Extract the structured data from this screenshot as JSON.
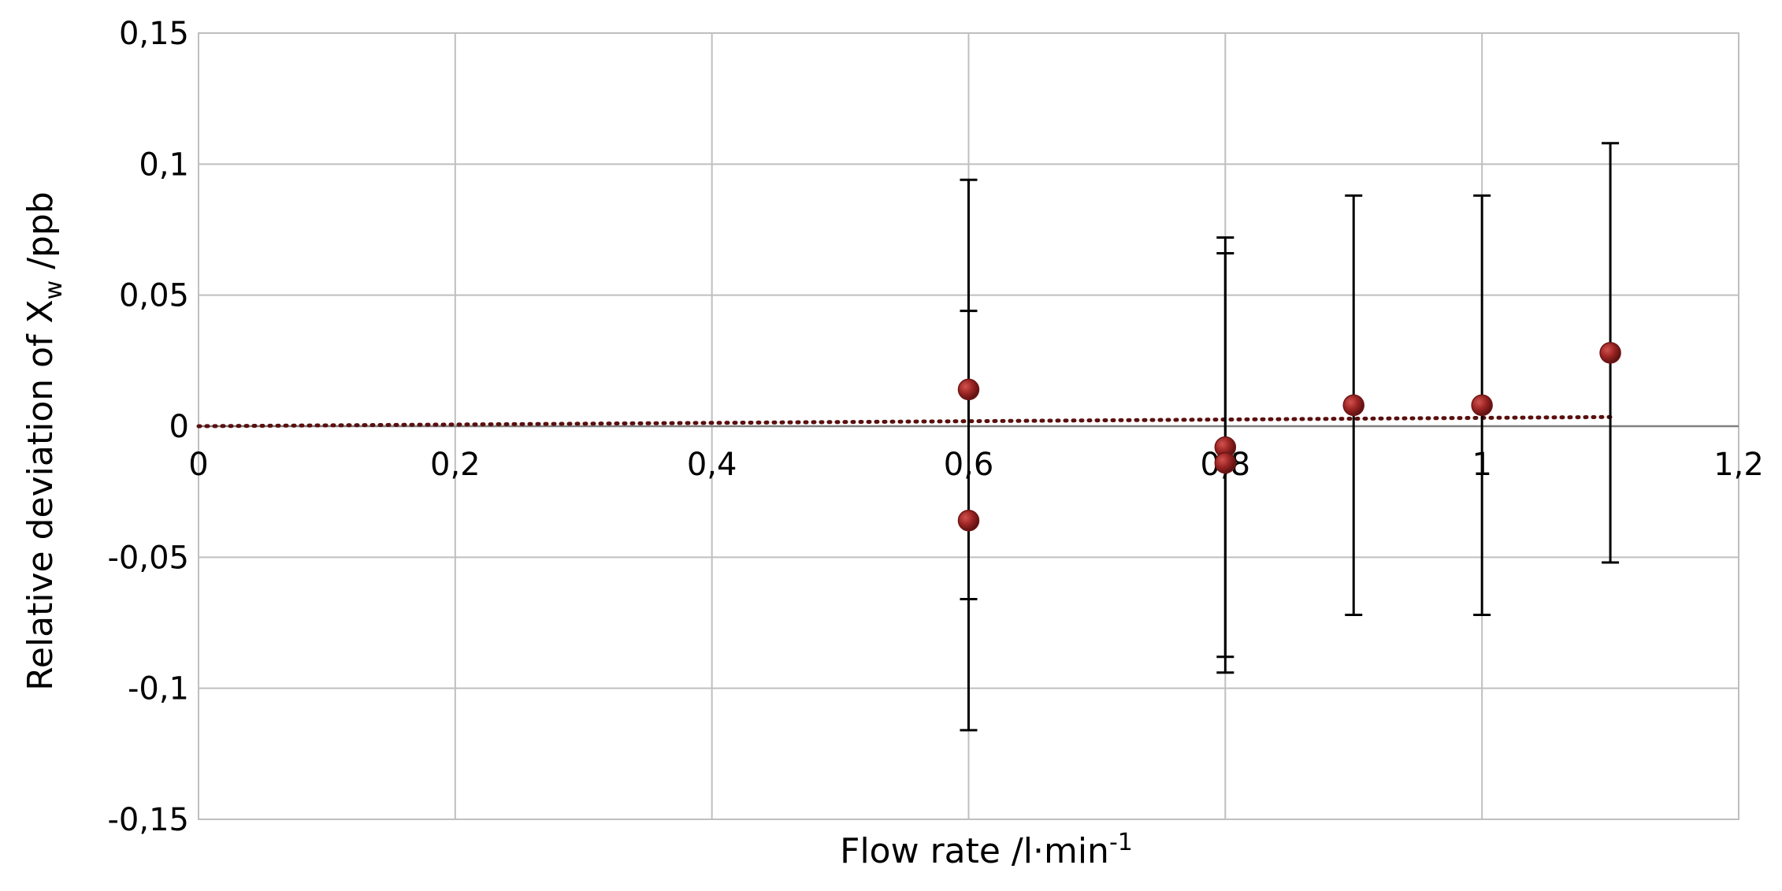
{
  "chart_data": {
    "type": "scatter",
    "xlabel": {
      "main": "Flow rate /l·min",
      "sup": "-1"
    },
    "ylabel": {
      "pre": "Relative deviation of  X",
      "sub": "w",
      "post": " /ppb"
    },
    "xlim": [
      0,
      1.2
    ],
    "ylim": [
      -0.15,
      0.15
    ],
    "x_ticks": [
      0,
      0.2,
      0.4,
      0.6,
      0.8,
      1.0,
      1.2
    ],
    "x_tick_labels": [
      "0",
      "0,2",
      "0,4",
      "0,6",
      "0,8",
      "1",
      "1,2"
    ],
    "y_ticks": [
      -0.15,
      -0.1,
      -0.05,
      0,
      0.05,
      0.1,
      0.15
    ],
    "y_tick_labels": [
      "-0,15",
      "-0,1",
      "-0,05",
      "0",
      "0,05",
      "0,1",
      "0,15"
    ],
    "grid": true,
    "points": [
      {
        "x": 0.6,
        "y": 0.014,
        "err_low": -0.066,
        "err_high": 0.094
      },
      {
        "x": 0.6,
        "y": -0.036,
        "err_low": -0.116,
        "err_high": 0.044
      },
      {
        "x": 0.8,
        "y": -0.008,
        "err_low": -0.088,
        "err_high": 0.072
      },
      {
        "x": 0.8,
        "y": -0.014,
        "err_low": -0.094,
        "err_high": 0.066
      },
      {
        "x": 0.9,
        "y": 0.008,
        "err_low": -0.072,
        "err_high": 0.088
      },
      {
        "x": 1.0,
        "y": 0.008,
        "err_low": -0.072,
        "err_high": 0.088
      },
      {
        "x": 1.1,
        "y": 0.028,
        "err_low": -0.052,
        "err_high": 0.108
      }
    ],
    "trendline": {
      "style": "dotted",
      "x": [
        0,
        1.1
      ],
      "y": [
        0,
        0.0035
      ]
    },
    "colors": {
      "marker": "#9b2423",
      "trendline": "#5a0f0f",
      "error_bar": "#000000",
      "grid": "#bfbfbf"
    }
  }
}
